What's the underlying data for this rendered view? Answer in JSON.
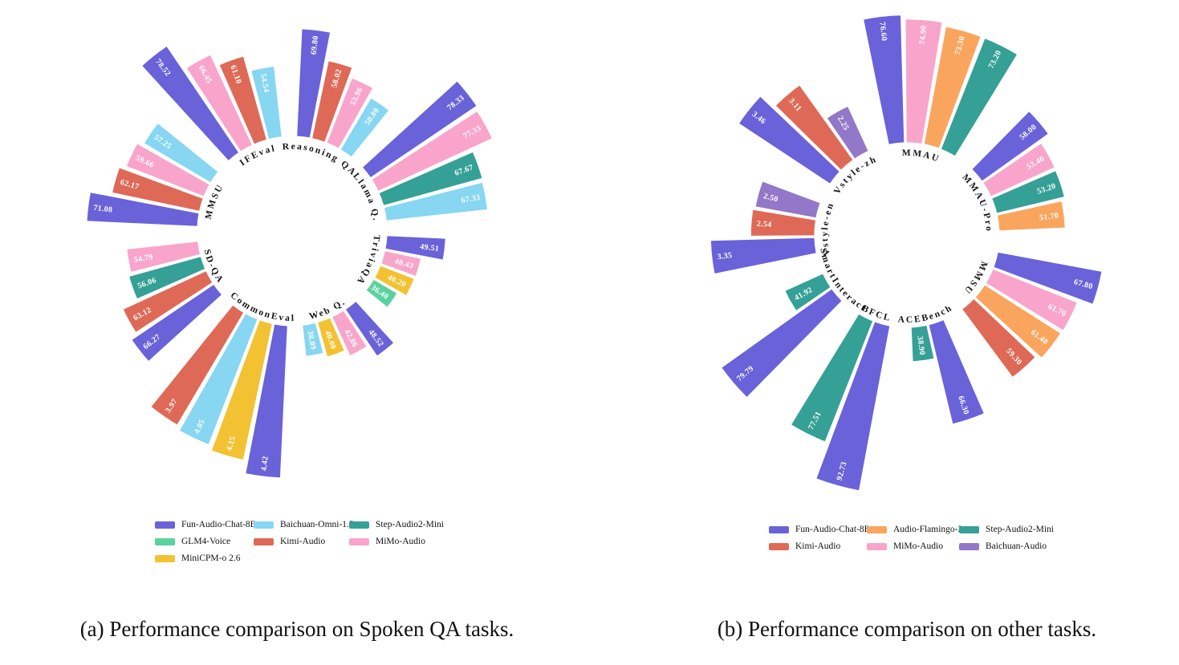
{
  "chart_data": [
    {
      "type": "polar_bar",
      "caption": "(a) Performance comparison on Spoken QA tasks.",
      "legend": [
        {
          "label": "Fun-Audio-Chat-8B",
          "color": "#6a62d9"
        },
        {
          "label": "Baichuan-Omni-1.5",
          "color": "#87d6f2"
        },
        {
          "label": "Step-Audio2-Mini",
          "color": "#35a095"
        },
        {
          "label": "GLM4-Voice",
          "color": "#5ad2a0"
        },
        {
          "label": "Kimi-Audio",
          "color": "#df6957"
        },
        {
          "label": "MiMo-Audio",
          "color": "#f9a5cb"
        },
        {
          "label": "MiniCPM-o 2.6",
          "color": "#f3c233"
        }
      ],
      "groups": [
        {
          "name": "Reasoning QA",
          "scale": 100,
          "bars": [
            {
              "model": "Fun-Audio-Chat-8B",
              "value": "69.80"
            },
            {
              "model": "Kimi-Audio",
              "value": "58.02"
            },
            {
              "model": "MiMo-Audio",
              "value": "53.96"
            },
            {
              "model": "Baichuan-Omni-1.5",
              "value": "50.00"
            }
          ]
        },
        {
          "name": "Llama Q.",
          "scale": 100,
          "bars": [
            {
              "model": "Fun-Audio-Chat-8B",
              "value": "78.33"
            },
            {
              "model": "MiMo-Audio",
              "value": "77.33"
            },
            {
              "model": "Step-Audio2-Mini",
              "value": "67.67"
            },
            {
              "model": "Baichuan-Omni-1.5",
              "value": "67.33"
            }
          ]
        },
        {
          "name": "TriviaQA",
          "scale": 100,
          "bars": [
            {
              "model": "Fun-Audio-Chat-8B",
              "value": "49.51"
            },
            {
              "model": "MiMo-Audio",
              "value": "40.43"
            },
            {
              "model": "MiniCPM-o 2.6",
              "value": "40.20"
            },
            {
              "model": "GLM4-Voice",
              "value": "36.40"
            }
          ]
        },
        {
          "name": "Web Q.",
          "scale": 100,
          "bars": [
            {
              "model": "Fun-Audio-Chat-8B",
              "value": "48.52"
            },
            {
              "model": "MiMo-Audio",
              "value": "42.86"
            },
            {
              "model": "MiniCPM-o 2.6",
              "value": "40.00"
            },
            {
              "model": "Baichuan-Omni-1.5",
              "value": "38.09"
            }
          ]
        },
        {
          "name": "CommonEval",
          "scale": 5,
          "bars": [
            {
              "model": "Fun-Audio-Chat-8B",
              "value": "4.42"
            },
            {
              "model": "MiniCPM-o 2.6",
              "value": "4.15"
            },
            {
              "model": "Baichuan-Omni-1.5",
              "value": "4.05"
            },
            {
              "model": "Kimi-Audio",
              "value": "3.97"
            }
          ]
        },
        {
          "name": "SD-QA",
          "scale": 100,
          "bars": [
            {
              "model": "Fun-Audio-Chat-8B",
              "value": "66.27"
            },
            {
              "model": "Kimi-Audio",
              "value": "63.12"
            },
            {
              "model": "Step-Audio2-Mini",
              "value": "56.06"
            },
            {
              "model": "MiMo-Audio",
              "value": "54.79"
            }
          ]
        },
        {
          "name": "MMSU",
          "scale": 100,
          "bars": [
            {
              "model": "Fun-Audio-Chat-8B",
              "value": "71.08"
            },
            {
              "model": "Kimi-Audio",
              "value": "62.17"
            },
            {
              "model": "MiMo-Audio",
              "value": "59.66"
            },
            {
              "model": "Baichuan-Omni-1.5",
              "value": "57.25"
            }
          ]
        },
        {
          "name": "IFEval",
          "scale": 100,
          "bars": [
            {
              "model": "Fun-Audio-Chat-8B",
              "value": "78.52"
            },
            {
              "model": "MiMo-Audio",
              "value": "66.45"
            },
            {
              "model": "Kimi-Audio",
              "value": "61.10"
            },
            {
              "model": "Baichuan-Omni-1.5",
              "value": "54.54"
            }
          ]
        }
      ]
    },
    {
      "type": "polar_bar",
      "caption": "(b) Performance comparison on other tasks.",
      "legend": [
        {
          "label": "Fun-Audio-Chat-8B",
          "color": "#6a62d9"
        },
        {
          "label": "Audio-Flamingo-3",
          "color": "#faa55e"
        },
        {
          "label": "Step-Audio2-Mini",
          "color": "#35a095"
        },
        {
          "label": "Kimi-Audio",
          "color": "#df6957"
        },
        {
          "label": "MiMo-Audio",
          "color": "#f9a5cb"
        },
        {
          "label": "Baichuan-Audio",
          "color": "#9377c8"
        }
      ],
      "groups": [
        {
          "name": "MMAU",
          "scale": 100,
          "bars": [
            {
              "model": "Fun-Audio-Chat-8B",
              "value": "76.60"
            },
            {
              "model": "MiMo-Audio",
              "value": "74.90"
            },
            {
              "model": "Audio-Flamingo-3",
              "value": "73.30"
            },
            {
              "model": "Step-Audio2-Mini",
              "value": "73.20"
            }
          ]
        },
        {
          "name": "MMAU-Pro",
          "scale": 100,
          "bars": [
            {
              "model": "Fun-Audio-Chat-8B",
              "value": "58.00"
            },
            {
              "model": "MiMo-Audio",
              "value": "53.40"
            },
            {
              "model": "Step-Audio2-Mini",
              "value": "53.20"
            },
            {
              "model": "Audio-Flamingo-3",
              "value": "51.70"
            }
          ]
        },
        {
          "name": "MMSU",
          "scale": 100,
          "bars": [
            {
              "model": "Fun-Audio-Chat-8B",
              "value": "67.80"
            },
            {
              "model": "MiMo-Audio",
              "value": "61.70"
            },
            {
              "model": "Audio-Flamingo-3",
              "value": "61.40"
            },
            {
              "model": "Kimi-Audio",
              "value": "59.30"
            }
          ]
        },
        {
          "name": "ACEBench",
          "scale": 100,
          "bars": [
            {
              "model": "Fun-Audio-Chat-8B",
              "value": "66.30"
            },
            {
              "model": "Step-Audio2-Mini",
              "value": "38.90"
            }
          ]
        },
        {
          "name": "BFCL",
          "scale": 100,
          "bars": [
            {
              "model": "Fun-Audio-Chat-8B",
              "value": "92.73"
            },
            {
              "model": "Step-Audio2-Mini",
              "value": "77.51"
            }
          ]
        },
        {
          "name": "SmartInteract",
          "scale": 100,
          "bars": [
            {
              "model": "Fun-Audio-Chat-8B",
              "value": "79.79"
            },
            {
              "model": "Step-Audio2-Mini",
              "value": "41.92"
            }
          ]
        },
        {
          "name": "Vstyle-en",
          "scale": 5,
          "bars": [
            {
              "model": "Fun-Audio-Chat-8B",
              "value": "3.35"
            },
            {
              "model": "Kimi-Audio",
              "value": "2.54"
            },
            {
              "model": "Baichuan-Audio",
              "value": "2.50"
            }
          ]
        },
        {
          "name": "Vstyle-zh",
          "scale": 5,
          "bars": [
            {
              "model": "Fun-Audio-Chat-8B",
              "value": "3.46"
            },
            {
              "model": "Kimi-Audio",
              "value": "3.11"
            },
            {
              "model": "Baichuan-Audio",
              "value": "2.25"
            }
          ]
        }
      ]
    }
  ]
}
